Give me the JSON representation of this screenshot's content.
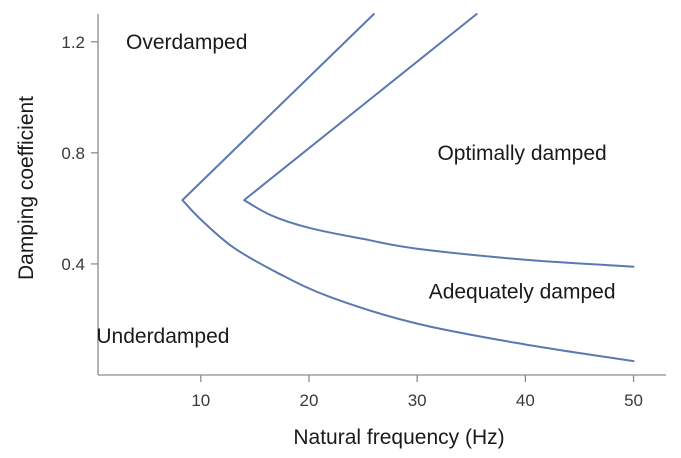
{
  "chart_data": {
    "type": "line",
    "xlabel": "Natural frequency (Hz)",
    "ylabel": "Damping coefficient",
    "xlim": [
      0.5,
      53
    ],
    "ylim": [
      0.0,
      1.3
    ],
    "x_ticks": [
      10,
      20,
      30,
      40,
      50
    ],
    "y_ticks": [
      0.4,
      0.8,
      1.2
    ],
    "x_tick_labels": [
      "10",
      "20",
      "30",
      "40",
      "50"
    ],
    "y_tick_labels": [
      "0.4",
      "0.8",
      "1.2"
    ],
    "grid": false,
    "line_color": "#5b79b0",
    "series": [
      {
        "points": [
          [
            26,
            1.3
          ],
          [
            8.3,
            0.63
          ],
          [
            10,
            0.56
          ],
          [
            13,
            0.46
          ],
          [
            17,
            0.37
          ],
          [
            22,
            0.28
          ],
          [
            30,
            0.185
          ],
          [
            40,
            0.11
          ],
          [
            50,
            0.05
          ]
        ]
      },
      {
        "points": [
          [
            35.5,
            1.3
          ],
          [
            14,
            0.63
          ],
          [
            16.5,
            0.575
          ],
          [
            20,
            0.53
          ],
          [
            25,
            0.49
          ],
          [
            30,
            0.455
          ],
          [
            40,
            0.415
          ],
          [
            50,
            0.39
          ]
        ]
      }
    ],
    "annotations": [
      {
        "text": "Overdamped",
        "x": 8.7,
        "y": 1.2
      },
      {
        "text": "Optimally damped",
        "x": 39.7,
        "y": 0.8
      },
      {
        "text": "Adequately damped",
        "x": 39.7,
        "y": 0.3
      },
      {
        "text": "Underdamped",
        "x": 6.5,
        "y": 0.14
      }
    ]
  }
}
